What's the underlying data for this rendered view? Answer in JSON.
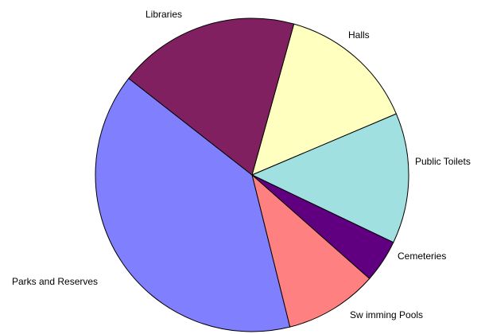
{
  "chart_data": {
    "type": "pie",
    "slices": [
      {
        "label": "Halls",
        "value": 15.2,
        "color": "#FFFFC0"
      },
      {
        "label": "Public Toilets",
        "value": 14.3,
        "color": "#A0E0E0"
      },
      {
        "label": "Cemeteries",
        "value": 4.7,
        "color": "#600080"
      },
      {
        "label": "Sw imming Pools",
        "value": 10.2,
        "color": "#FF8080"
      },
      {
        "label": "Parks and Reserves",
        "value": 41.9,
        "color": "#8080FF"
      },
      {
        "label": "Libraries",
        "value": 19.9,
        "color": "#802060"
      }
    ],
    "title": "",
    "legend": "none",
    "start": "top, clockwise"
  }
}
